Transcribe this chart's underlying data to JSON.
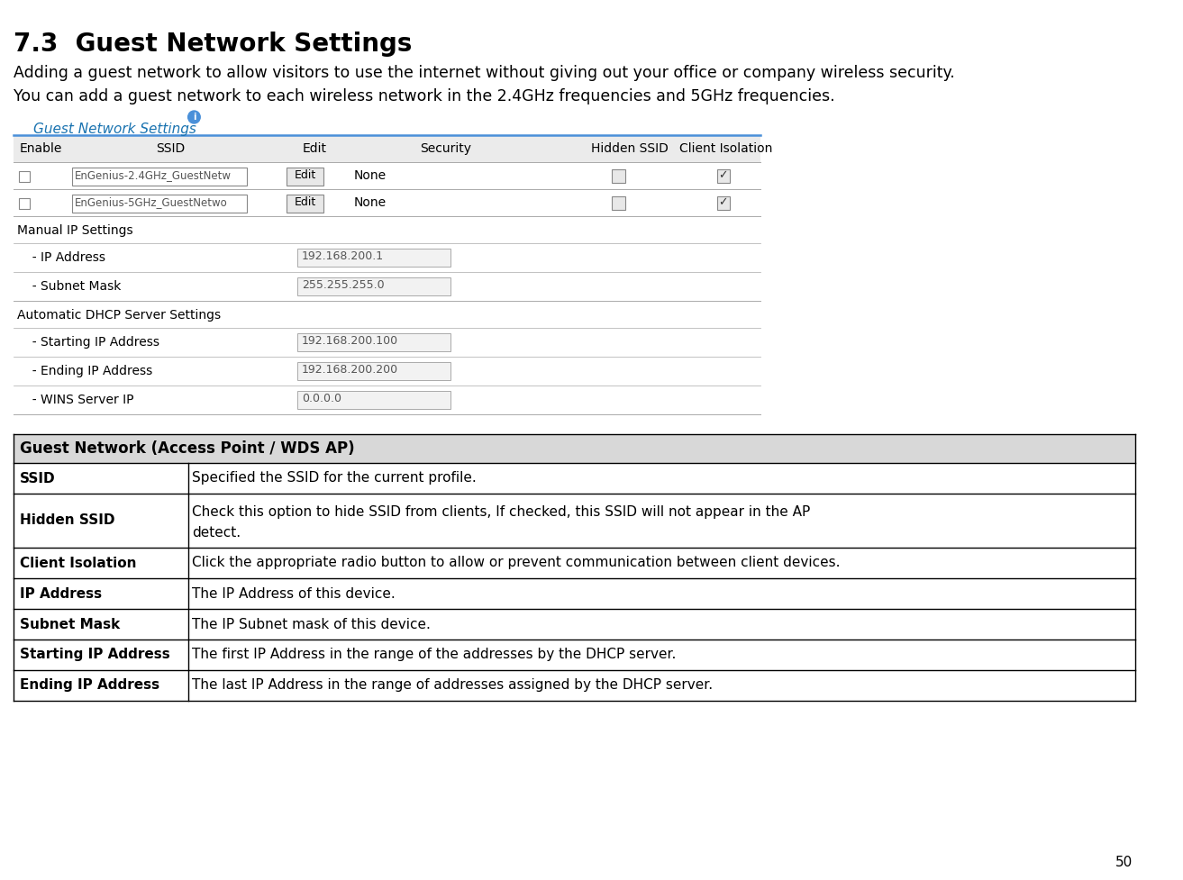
{
  "title": "7.3  Guest Network Settings",
  "subtitle_line1": "Adding a guest network to allow visitors to use the internet without giving out your office or company wireless security.",
  "subtitle_line2": "You can add a guest network to each wireless network in the 2.4GHz frequencies and 5GHz frequencies.",
  "section_label": "Guest Network Settings",
  "page_number": "50",
  "bg_color": "#ffffff",
  "table1_header": [
    "Enable",
    "SSID",
    "Edit",
    "Security",
    "Hidden SSID",
    "Client Isolation"
  ],
  "table1_rows": [
    [
      "",
      "EnGenius-2.4GHz_GuestNetw",
      "Edit",
      "None",
      "",
      "✓"
    ],
    [
      "",
      "EnGenius-5GHz_GuestNetwo",
      "Edit",
      "None",
      "",
      "✓"
    ]
  ],
  "manual_ip_label": "Manual IP Settings",
  "manual_ip_rows": [
    [
      "  - IP Address",
      "192.168.200.1"
    ],
    [
      "  - Subnet Mask",
      "255.255.255.0"
    ]
  ],
  "dhcp_label": "Automatic DHCP Server Settings",
  "dhcp_rows": [
    [
      "  - Starting IP Address",
      "192.168.200.100"
    ],
    [
      "  - Ending IP Address",
      "192.168.200.200"
    ],
    [
      "  - WINS Server IP",
      "0.0.0.0"
    ]
  ],
  "info_table_header": "Guest Network (Access Point / WDS AP)",
  "info_table_rows": [
    [
      "SSID",
      "Specified the SSID for the current profile."
    ],
    [
      "Hidden SSID",
      "Check this option to hide SSID from clients, If checked, this SSID will not appear in the AP\ndetect."
    ],
    [
      "Client Isolation",
      "Click the appropriate radio button to allow or prevent communication between client devices."
    ],
    [
      "IP Address",
      "The IP Address of this device."
    ],
    [
      "Subnet Mask",
      "The IP Subnet mask of this device."
    ],
    [
      "Starting IP Address",
      "The first IP Address in the range of the addresses by the DHCP server."
    ],
    [
      "Ending IP Address",
      "The last IP Address in the range of addresses assigned by the DHCP server."
    ]
  ],
  "info_row_heights": [
    34,
    60,
    34,
    34,
    34,
    34,
    34
  ]
}
